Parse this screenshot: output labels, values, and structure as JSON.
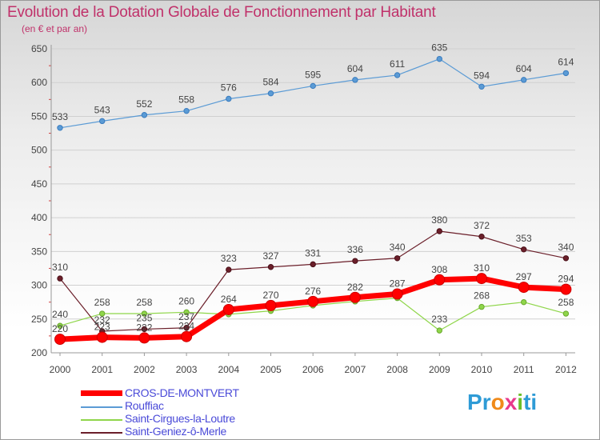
{
  "header": {
    "title": "Evolution de la Dotation Globale de Fonctionnement par Habitant",
    "subtitle": "(en € et par an)"
  },
  "chart_data": {
    "type": "line",
    "title": "Evolution de la Dotation Globale de Fonctionnement par Habitant",
    "subtitle": "(en € et par an)",
    "xlabel": "",
    "ylabel": "",
    "x": [
      "2000",
      "2001",
      "2002",
      "2003",
      "2004",
      "2005",
      "2006",
      "2007",
      "2008",
      "2009",
      "2010",
      "2011",
      "2012"
    ],
    "ylim": [
      200,
      650
    ],
    "yticks": [
      200,
      250,
      300,
      350,
      400,
      450,
      500,
      550,
      600,
      650
    ],
    "grid": "horizontal",
    "legend": "bottom-left",
    "series": [
      {
        "name": "Rouffiac",
        "color": "#5b9bd5",
        "values": [
          533,
          543,
          552,
          558,
          576,
          584,
          595,
          604,
          611,
          635,
          594,
          604,
          614
        ]
      },
      {
        "name": "Saint-Cirgues-la-Loutre",
        "color": "#8fd64a",
        "values": [
          240,
          258,
          258,
          260,
          257,
          262,
          270,
          276,
          281,
          233,
          268,
          275,
          258
        ]
      },
      {
        "name": "Saint-Geniez-ô-Merle",
        "color": "#6b1f2a",
        "values": [
          310,
          232,
          235,
          237,
          323,
          327,
          331,
          336,
          340,
          380,
          372,
          353,
          340
        ]
      },
      {
        "name": "CROS-DE-MONTVERT",
        "color": "#ff0000",
        "values": [
          220,
          223,
          222,
          224,
          264,
          270,
          276,
          282,
          287,
          308,
          310,
          297,
          294
        ]
      }
    ],
    "data_labels": [
      {
        "series": 0,
        "labels": [
          "533",
          "543",
          "552",
          "558",
          "576",
          "584",
          "595",
          "604",
          "611",
          "635",
          "594",
          "604",
          "614"
        ]
      },
      {
        "series": 1,
        "labels": [
          "240",
          "258",
          "258",
          "260",
          "",
          "",
          "",
          "",
          "",
          "233",
          "268",
          "",
          "258"
        ]
      },
      {
        "series": 2,
        "labels": [
          "310",
          "232",
          "235",
          "237",
          "323",
          "327",
          "331",
          "336",
          "340",
          "380",
          "372",
          "353",
          "340"
        ]
      },
      {
        "series": 3,
        "labels": [
          "220",
          "223",
          "222",
          "224",
          "264",
          "270",
          "276",
          "282",
          "287",
          "308",
          "310",
          "297",
          "294"
        ]
      }
    ]
  },
  "legend": {
    "items": [
      {
        "label": "CROS-DE-MONTVERT",
        "color": "#ff0000"
      },
      {
        "label": "Rouffiac",
        "color": "#5b9bd5"
      },
      {
        "label": "Saint-Cirgues-la-Loutre",
        "color": "#8fd64a"
      },
      {
        "label": "Saint-Geniez-ô-Merle",
        "color": "#6b1f2a"
      }
    ]
  },
  "logo": {
    "text": "Proxiti",
    "letters": [
      "P",
      "r",
      "o",
      "x",
      "i",
      "t",
      "i"
    ],
    "colors": [
      "#2e9bd6",
      "#2e9bd6",
      "#f08a1a",
      "#e83a8c",
      "#6cbf2a",
      "#2e9bd6",
      "#2e9bd6"
    ]
  }
}
